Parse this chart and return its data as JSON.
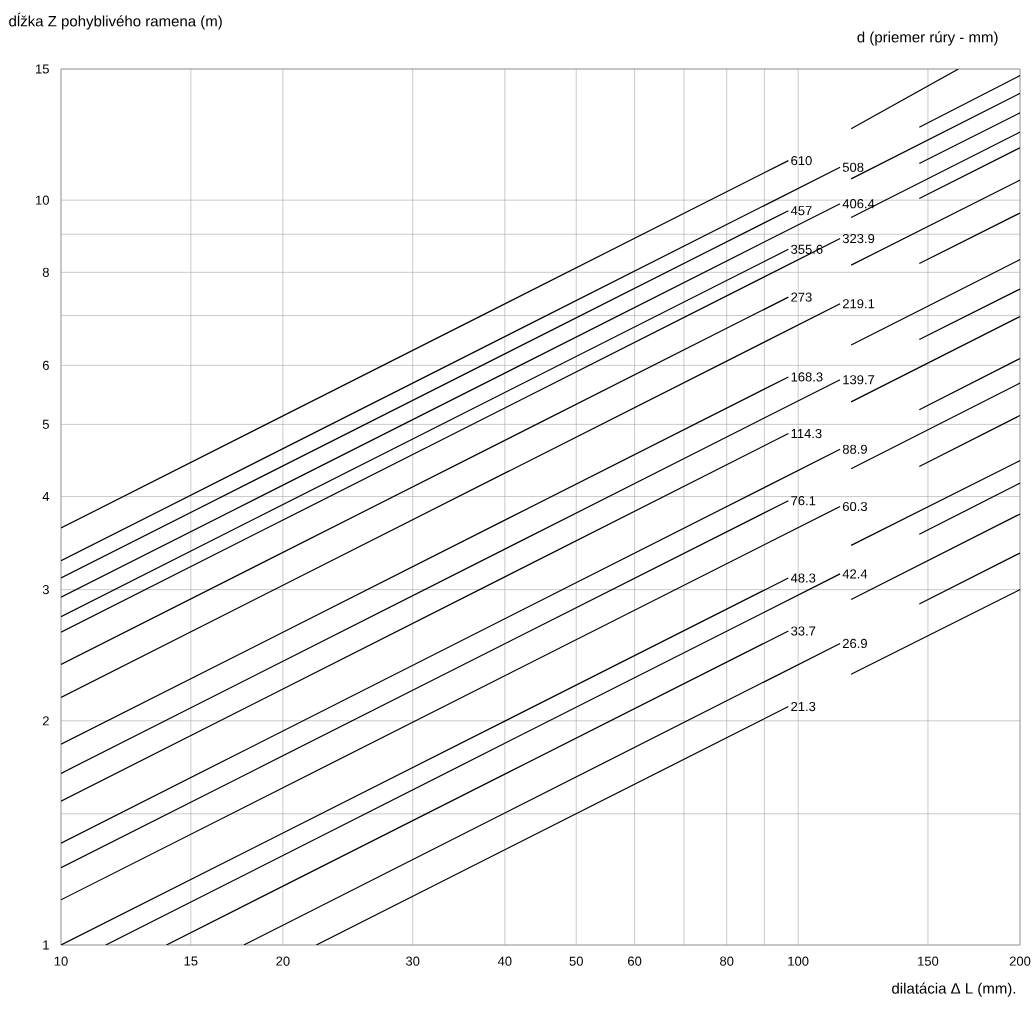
{
  "chart_data": {
    "type": "line",
    "ylabel": "dĺžka Z pohyblivého ramena (m)",
    "xlabel": "dilatácia Δ L  (mm).",
    "legend_title": "d (priemer rúry - mm)",
    "log": "xy",
    "grid": true,
    "xlim": [
      10,
      200
    ],
    "ylim": [
      1,
      15
    ],
    "xticks": [
      10,
      15,
      20,
      30,
      40,
      50,
      60,
      {
        "value": 70,
        "label": null
      },
      80,
      {
        "value": 90,
        "label": null
      },
      100,
      150,
      200
    ],
    "yticks": [
      1,
      {
        "value": 1.5,
        "label": null
      },
      2,
      3,
      4,
      5,
      6,
      {
        "value": 7,
        "label": null
      },
      8,
      {
        "value": 9,
        "label": null
      },
      10,
      15
    ],
    "series": [
      {
        "name": "610",
        "color": "#000000",
        "x": [
          10,
          97,
          107,
          118,
          165
        ],
        "values": [
          3.63,
          11.3,
          null,
          12.47,
          15
        ]
      },
      {
        "name": "508",
        "color": "#000000",
        "x": [
          10,
          114,
          129,
          146,
          200
        ],
        "values": [
          3.28,
          11.07,
          null,
          12.53,
          14.7
        ]
      },
      {
        "name": "457",
        "color": "#000000",
        "x": [
          10,
          97,
          107,
          118,
          200
        ],
        "values": [
          3.11,
          9.68,
          null,
          10.68,
          13.91
        ]
      },
      {
        "name": "406.4",
        "color": "#000000",
        "x": [
          10,
          114,
          129,
          146,
          200
        ],
        "values": [
          2.93,
          9.89,
          null,
          11.2,
          13.1
        ]
      },
      {
        "name": "355.6",
        "color": "#000000",
        "x": [
          10,
          97,
          107,
          118,
          200
        ],
        "values": [
          2.76,
          8.59,
          null,
          9.48,
          12.34
        ]
      },
      {
        "name": "323.9",
        "color": "#000000",
        "x": [
          10,
          114,
          129,
          146,
          200
        ],
        "values": [
          2.63,
          8.88,
          null,
          10.05,
          11.76
        ]
      },
      {
        "name": "273",
        "color": "#000000",
        "x": [
          10,
          97,
          107,
          118,
          200
        ],
        "values": [
          2.38,
          7.41,
          null,
          8.18,
          10.64
        ]
      },
      {
        "name": "219.1",
        "color": "#000000",
        "x": [
          10,
          114,
          129,
          146,
          200
        ],
        "values": [
          2.15,
          7.26,
          null,
          8.22,
          9.61
        ]
      },
      {
        "name": "168.3",
        "color": "#000000",
        "x": [
          10,
          97,
          107,
          118,
          200
        ],
        "values": [
          1.86,
          5.79,
          null,
          6.39,
          8.32
        ]
      },
      {
        "name": "139.7",
        "color": "#000000",
        "x": [
          10,
          114,
          129,
          146,
          200
        ],
        "values": [
          1.7,
          5.74,
          null,
          6.5,
          7.6
        ]
      },
      {
        "name": "114.3",
        "color": "#000000",
        "x": [
          10,
          97,
          107,
          118,
          200
        ],
        "values": [
          1.56,
          4.86,
          null,
          5.36,
          6.98
        ]
      },
      {
        "name": "88.9",
        "color": "#000000",
        "x": [
          10,
          114,
          129,
          146,
          200
        ],
        "values": [
          1.37,
          4.63,
          null,
          5.23,
          6.13
        ]
      },
      {
        "name": "76.1",
        "color": "#000000",
        "x": [
          10,
          97,
          107,
          118,
          200
        ],
        "values": [
          1.27,
          3.95,
          null,
          4.36,
          5.68
        ]
      },
      {
        "name": "60.3",
        "color": "#000000",
        "x": [
          10,
          114,
          129,
          146,
          200
        ],
        "values": [
          1.15,
          3.88,
          null,
          4.39,
          5.14
        ]
      },
      {
        "name": "48.3",
        "color": "#000000",
        "x": [
          10,
          97,
          107,
          118,
          200
        ],
        "values": [
          1.0,
          3.11,
          null,
          3.44,
          4.47
        ]
      },
      {
        "name": "42.4",
        "color": "#000000",
        "x": [
          11.5,
          114,
          129,
          146,
          200
        ],
        "values": [
          1.0,
          3.15,
          null,
          3.56,
          4.17
        ]
      },
      {
        "name": "33.7",
        "color": "#000000",
        "x": [
          13.9,
          97,
          107,
          118,
          200
        ],
        "values": [
          1.0,
          2.64,
          null,
          2.91,
          3.79
        ]
      },
      {
        "name": "26.9",
        "color": "#000000",
        "x": [
          17.7,
          114,
          129,
          146,
          200
        ],
        "values": [
          1.0,
          2.54,
          null,
          2.87,
          3.36
        ]
      },
      {
        "name": "21.3",
        "color": "#000000",
        "x": [
          22.2,
          97,
          107,
          118,
          200
        ],
        "values": [
          1.0,
          2.09,
          null,
          2.31,
          3.0
        ]
      }
    ]
  }
}
